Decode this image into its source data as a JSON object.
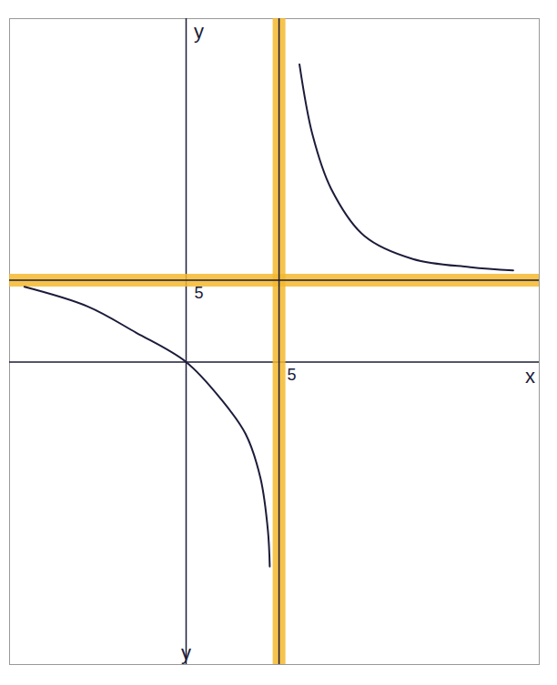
{
  "chart_data": {
    "type": "line",
    "x_label": "x",
    "y_label": "y",
    "xlim": [
      -9.5,
      19
    ],
    "ylim": [
      -18.5,
      21
    ],
    "xticks": [
      5
    ],
    "yticks": [
      5
    ],
    "color": "#1c1c3a",
    "branches": [
      {
        "x": [
          -8.7,
          -5.3,
          -2.7,
          0,
          1.9,
          3.2,
          4.0,
          4.4,
          4.5
        ],
        "y": [
          4.6,
          3.4,
          1.8,
          0,
          -2.3,
          -4.4,
          -7.1,
          -10.3,
          -12.5
        ]
      },
      {
        "x": [
          6.1,
          6.8,
          7.8,
          9.6,
          12.2,
          15.3,
          17.6
        ],
        "y": [
          18.2,
          13.9,
          10.6,
          7.7,
          6.3,
          5.8,
          5.6
        ]
      }
    ],
    "asymptotes": {
      "x": 5,
      "y": 5,
      "color": "#f5b82e"
    },
    "annotations": [
      {
        "text": "y",
        "x": 0,
        "y": -17.8
      }
    ]
  }
}
